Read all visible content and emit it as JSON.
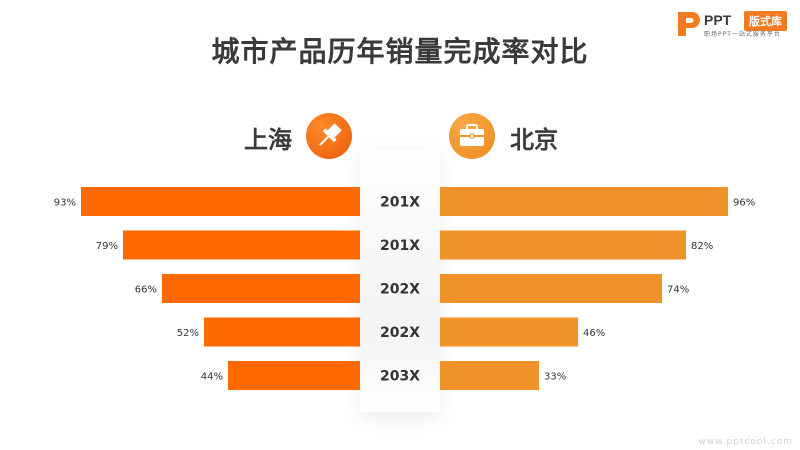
{
  "title": "城市产品历年销量完成率对比",
  "logo": {
    "brand": "PPT",
    "badge": "版式库",
    "tagline": "职场PPT一站式服务平台"
  },
  "watermark": "www.pptcool.com",
  "colors": {
    "left": "#ff6a00",
    "right": "#f0922a",
    "label": "#333333"
  },
  "legend": {
    "left": "上海",
    "right": "北京",
    "left_icon": "pushpin-icon",
    "right_icon": "briefcase-icon"
  },
  "chart_data": {
    "type": "bar",
    "layout": "back-to-back horizontal bars",
    "categories": [
      "201X",
      "201X",
      "202X",
      "202X",
      "203X"
    ],
    "series": [
      {
        "name": "上海",
        "values": [
          93,
          79,
          66,
          52,
          44
        ],
        "labels": [
          "93%",
          "79%",
          "66%",
          "52%",
          "44%"
        ]
      },
      {
        "name": "北京",
        "values": [
          96,
          82,
          74,
          46,
          33
        ],
        "labels": [
          "96%",
          "82%",
          "74%",
          "46%",
          "33%"
        ]
      }
    ],
    "title": "城市产品历年销量完成率对比",
    "unit": "%",
    "xlim": [
      0,
      100
    ],
    "grid": false
  }
}
